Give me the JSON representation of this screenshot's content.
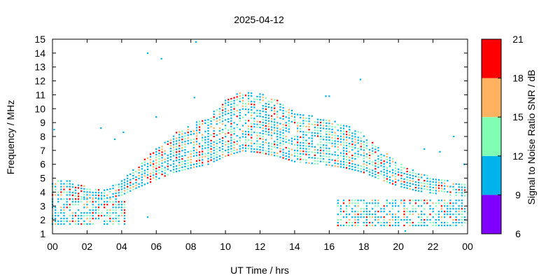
{
  "chart_data": {
    "type": "heatmap",
    "title": "2025-04-12",
    "xlabel": "UT Time / hrs",
    "ylabel": "Frequency / MHz",
    "colorbar_label": "Signal to Noise Ratio SNR / dB",
    "xlim": [
      0,
      24
    ],
    "ylim": [
      1,
      15
    ],
    "x_ticks": [
      "00",
      "02",
      "04",
      "06",
      "08",
      "10",
      "12",
      "14",
      "16",
      "18",
      "20",
      "22",
      "00"
    ],
    "y_ticks": [
      "1",
      "2",
      "3",
      "4",
      "5",
      "6",
      "7",
      "8",
      "9",
      "10",
      "11",
      "12",
      "13",
      "14",
      "15"
    ],
    "colorbar": {
      "range": [
        6,
        21
      ],
      "ticks": [
        "6",
        "9",
        "12",
        "15",
        "18",
        "21"
      ],
      "bands": [
        {
          "min": 6,
          "max": 9,
          "color": "#7f00ff"
        },
        {
          "min": 9,
          "max": 12,
          "color": "#00b4eb"
        },
        {
          "min": 12,
          "max": 15,
          "color": "#80ffb4"
        },
        {
          "min": 15,
          "max": 18,
          "color": "#ffb360"
        },
        {
          "min": 18,
          "max": 21,
          "color": "#ff0000"
        }
      ]
    },
    "sample_interval_hours": 0.1667,
    "frequency_step_mhz": 0.2,
    "upper_band_center_mhz": [
      {
        "t": 0,
        "f": 4.3
      },
      {
        "t": 1,
        "f": 4.3
      },
      {
        "t": 2,
        "f": 4.0
      },
      {
        "t": 3,
        "f": 3.9
      },
      {
        "t": 4,
        "f": 4.3
      },
      {
        "t": 5,
        "f": 5.2
      },
      {
        "t": 6,
        "f": 6.0
      },
      {
        "t": 7,
        "f": 6.8
      },
      {
        "t": 8,
        "f": 7.3
      },
      {
        "t": 9,
        "f": 7.7
      },
      {
        "t": 10,
        "f": 8.6
      },
      {
        "t": 11,
        "f": 9.2
      },
      {
        "t": 12,
        "f": 9.0
      },
      {
        "t": 13,
        "f": 8.6
      },
      {
        "t": 14,
        "f": 8.0
      },
      {
        "t": 15,
        "f": 7.8
      },
      {
        "t": 16,
        "f": 7.6
      },
      {
        "t": 17,
        "f": 7.3
      },
      {
        "t": 18,
        "f": 6.8
      },
      {
        "t": 19,
        "f": 6.0
      },
      {
        "t": 20,
        "f": 5.3
      },
      {
        "t": 21,
        "f": 4.8
      },
      {
        "t": 22,
        "f": 4.5
      },
      {
        "t": 23,
        "f": 4.3
      },
      {
        "t": 24,
        "f": 4.2
      }
    ],
    "lower_band_mhz": {
      "segments": [
        {
          "t0": 0,
          "t1": 4.2,
          "fmin": 1.7,
          "fmax": 3.7
        },
        {
          "t0": 16.5,
          "t1": 24,
          "fmin": 1.6,
          "fmax": 3.6
        }
      ]
    },
    "isolated_points": [
      {
        "t": 5.5,
        "f": 14.0
      },
      {
        "t": 6.3,
        "f": 13.6
      },
      {
        "t": 8.3,
        "f": 14.8
      },
      {
        "t": 8.2,
        "f": 10.8
      },
      {
        "t": 17.8,
        "f": 12.1
      },
      {
        "t": 15.8,
        "f": 10.9
      },
      {
        "t": 16.0,
        "f": 10.9
      },
      {
        "t": 6.0,
        "f": 9.4
      },
      {
        "t": 2.8,
        "f": 8.6
      },
      {
        "t": 3.6,
        "f": 7.8
      },
      {
        "t": 4.1,
        "f": 8.3
      },
      {
        "t": 0.1,
        "f": 8.5
      },
      {
        "t": 23.2,
        "f": 8.0
      },
      {
        "t": 21.5,
        "f": 7.1
      },
      {
        "t": 22.4,
        "f": 6.9
      },
      {
        "t": 5.5,
        "f": 2.2
      },
      {
        "t": 20.4,
        "f": 1.2
      },
      {
        "t": 23.8,
        "f": 6.0
      }
    ]
  }
}
